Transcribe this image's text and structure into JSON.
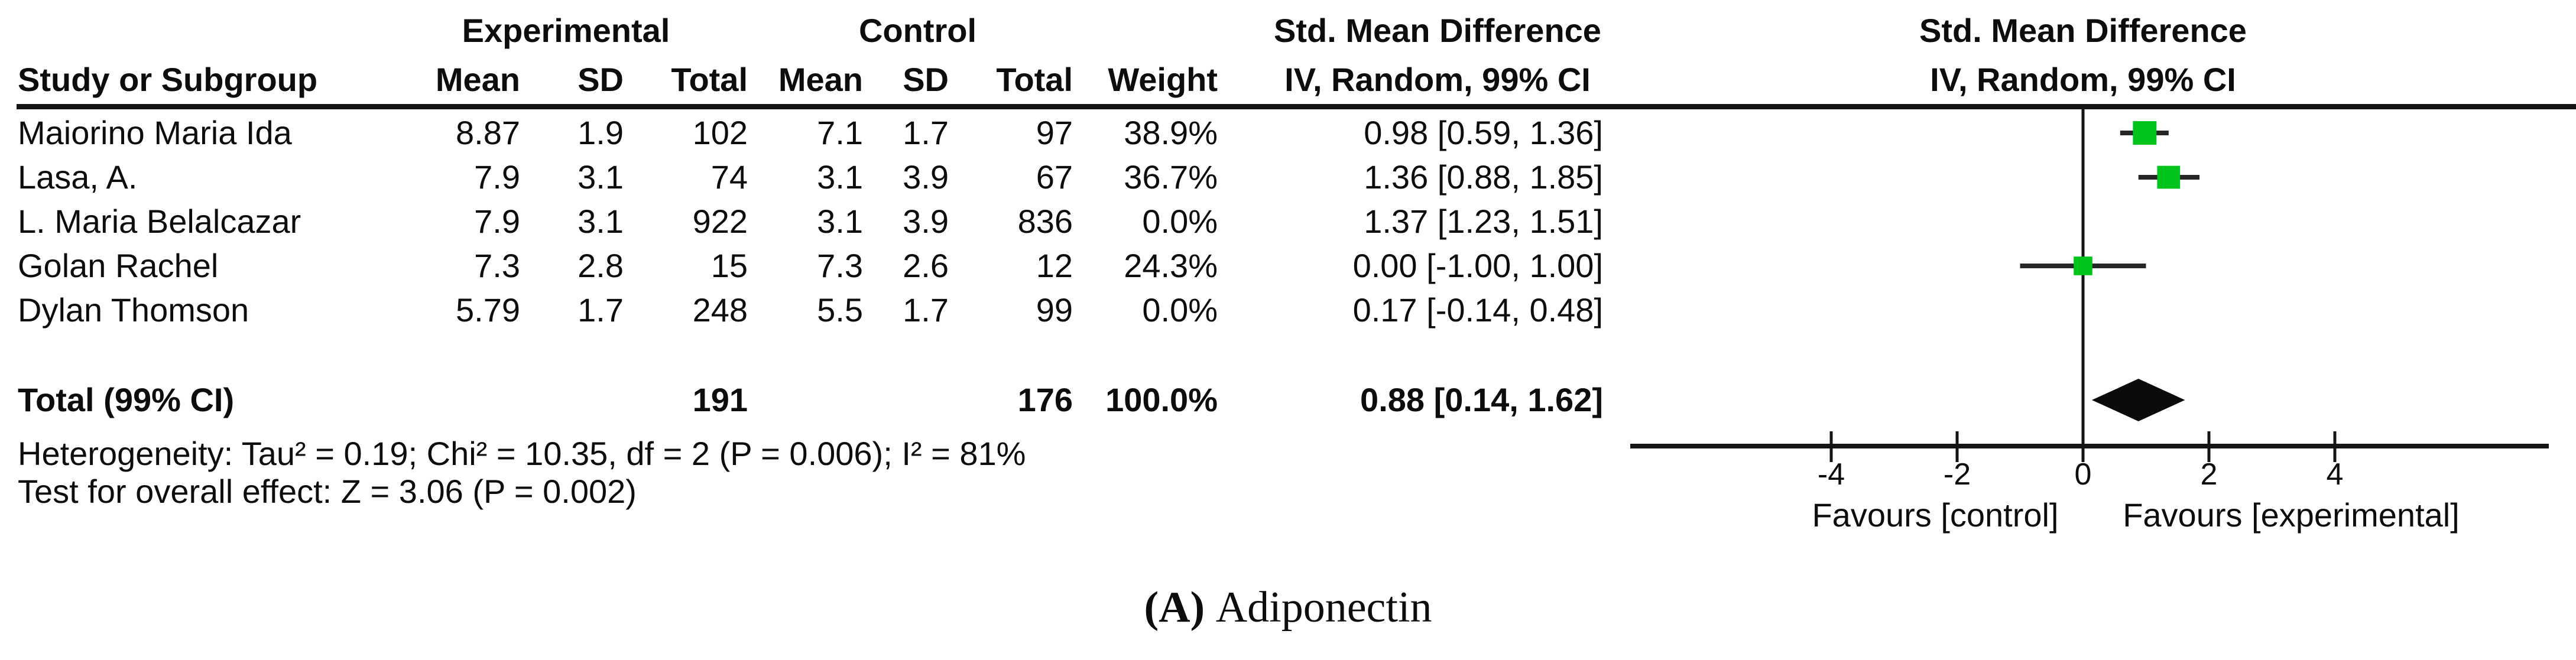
{
  "figure": {
    "caption_label": "(A)",
    "caption_text": "Adiponectin"
  },
  "table": {
    "group_headers": {
      "experimental": "Experimental",
      "control": "Control",
      "smd_text": "Std. Mean Difference",
      "smd_plot_title": "Std. Mean Difference",
      "smd_plot_subtitle": "IV, Random, 99% CI"
    },
    "columns": {
      "study": "Study or Subgroup",
      "mean_exp": "Mean",
      "sd_exp": "SD",
      "total_exp": "Total",
      "mean_ctl": "Mean",
      "sd_ctl": "SD",
      "total_ctl": "Total",
      "weight": "Weight",
      "ci": "IV, Random, 99% CI"
    },
    "rows": [
      {
        "study": "Maiorino Maria Ida",
        "exp_mean": "8.87",
        "exp_sd": "1.9",
        "exp_total": "102",
        "ctl_mean": "7.1",
        "ctl_sd": "1.7",
        "ctl_total": "97",
        "weight": "38.9%",
        "ci_text": "0.98 [0.59, 1.36]"
      },
      {
        "study": "Lasa, A.",
        "exp_mean": "7.9",
        "exp_sd": "3.1",
        "exp_total": "74",
        "ctl_mean": "3.1",
        "ctl_sd": "3.9",
        "ctl_total": "67",
        "weight": "36.7%",
        "ci_text": "1.36 [0.88, 1.85]"
      },
      {
        "study": "L. Maria Belalcazar",
        "exp_mean": "7.9",
        "exp_sd": "3.1",
        "exp_total": "922",
        "ctl_mean": "3.1",
        "ctl_sd": "3.9",
        "ctl_total": "836",
        "weight": "0.0%",
        "ci_text": "1.37 [1.23, 1.51]"
      },
      {
        "study": "Golan Rachel",
        "exp_mean": "7.3",
        "exp_sd": "2.8",
        "exp_total": "15",
        "ctl_mean": "7.3",
        "ctl_sd": "2.6",
        "ctl_total": "12",
        "weight": "24.3%",
        "ci_text": "0.00 [-1.00, 1.00]"
      },
      {
        "study": "Dylan Thomson",
        "exp_mean": "5.79",
        "exp_sd": "1.7",
        "exp_total": "248",
        "ctl_mean": "5.5",
        "ctl_sd": "1.7",
        "ctl_total": "99",
        "weight": "0.0%",
        "ci_text": "0.17 [-0.14, 0.48]"
      }
    ],
    "total_row": {
      "label": "Total (99% CI)",
      "exp_total": "191",
      "ctl_total": "176",
      "weight": "100.0%",
      "ci_text": "0.88 [0.14, 1.62]"
    },
    "footnotes": {
      "heterogeneity": "Heterogeneity: Tau² = 0.19; Chi² = 10.35, df = 2 (P = 0.006); I² = 81%",
      "overall_effect": "Test for overall effect: Z = 3.06 (P = 0.002)"
    }
  },
  "chart_data": {
    "type": "forest",
    "title": "Std. Mean Difference",
    "method": "IV, Random, 99% CI",
    "x_axis": {
      "ticks": [
        -4,
        -2,
        0,
        2,
        4
      ],
      "range": [
        -7,
        7.4
      ],
      "zero_line": 0
    },
    "axis_labels": {
      "left": "Favours [control]",
      "right": "Favours [experimental]"
    },
    "marker_color": "#00c31c",
    "line_color": "#141414",
    "studies": [
      {
        "name": "Maiorino Maria Ida",
        "smd": 0.98,
        "ci_low": 0.59,
        "ci_high": 1.36,
        "weight_pct": 38.9
      },
      {
        "name": "Lasa, A.",
        "smd": 1.36,
        "ci_low": 0.88,
        "ci_high": 1.85,
        "weight_pct": 36.7
      },
      {
        "name": "L. Maria Belalcazar",
        "smd": 1.37,
        "ci_low": 1.23,
        "ci_high": 1.51,
        "weight_pct": 0.0
      },
      {
        "name": "Golan Rachel",
        "smd": 0.0,
        "ci_low": -1.0,
        "ci_high": 1.0,
        "weight_pct": 24.3
      },
      {
        "name": "Dylan Thomson",
        "smd": 0.17,
        "ci_low": -0.14,
        "ci_high": 0.48,
        "weight_pct": 0.0
      }
    ],
    "total": {
      "label": "Total (99% CI)",
      "smd": 0.88,
      "ci_low": 0.14,
      "ci_high": 1.62,
      "exp_total": 191,
      "ctl_total": 176,
      "weight_pct": 100.0
    },
    "heterogeneity": {
      "tau2": 0.19,
      "chi2": 10.35,
      "df": 2,
      "p": 0.006,
      "i2_pct": 81
    },
    "overall_effect": {
      "z": 3.06,
      "p": 0.002
    }
  }
}
